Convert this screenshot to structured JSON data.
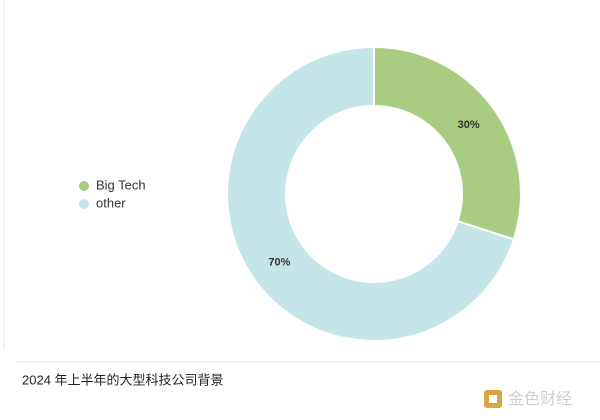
{
  "chart_data": {
    "type": "pie",
    "donut": true,
    "categories": [
      "Big Tech",
      "other"
    ],
    "values": [
      30,
      70
    ],
    "value_labels": [
      "30%",
      "70%"
    ],
    "colors": [
      "#a8cc82",
      "#c5e6e8"
    ],
    "legend": "left"
  },
  "caption": "2024 年上半年的大型科技公司背景",
  "watermark": "金色财经"
}
